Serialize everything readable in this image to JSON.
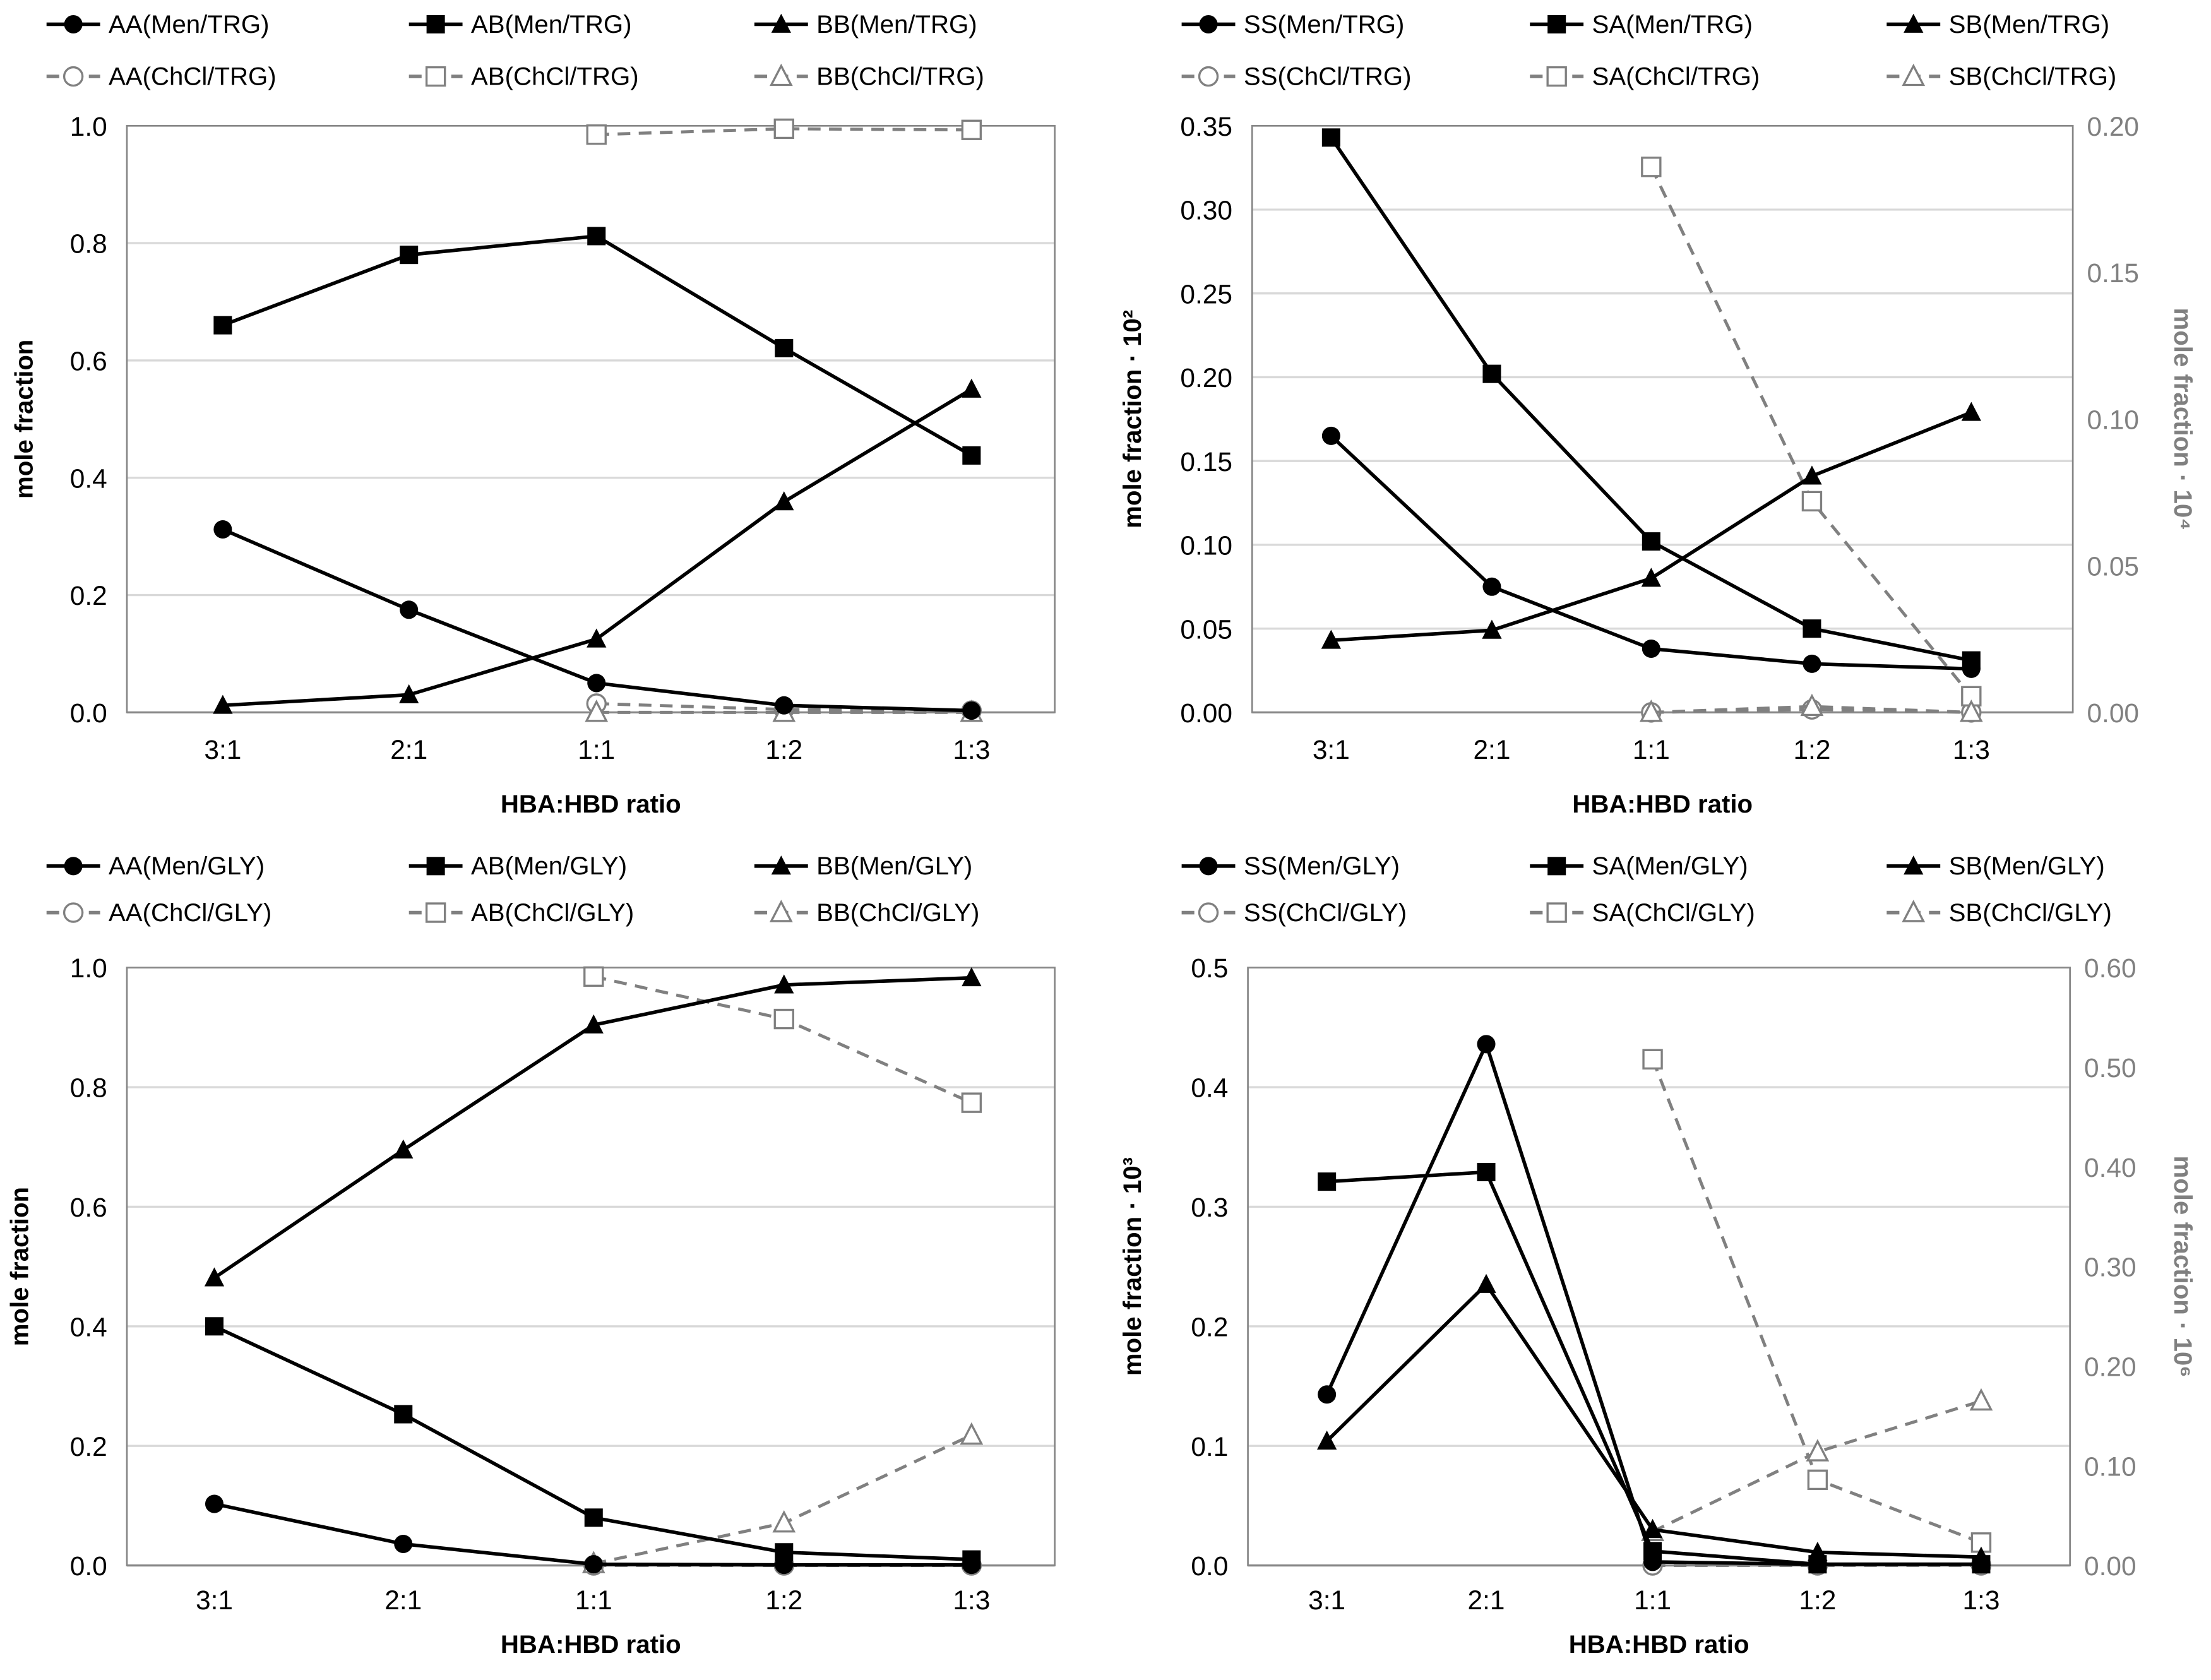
{
  "chart_data": [
    {
      "type": "line",
      "categories": [
        "3:1",
        "2:1",
        "1:1",
        "1:2",
        "1:3"
      ],
      "xlabel": "HBA:HBD ratio",
      "ylabel": "mole fraction",
      "ylim": [
        0,
        1.0
      ],
      "yticks": [
        "0.0",
        "0.2",
        "0.4",
        "0.6",
        "0.8",
        "1.0"
      ],
      "grid": true,
      "legend": "top",
      "series": [
        {
          "name": "AA(Men/TRG)",
          "axis": "left",
          "marker": "circle",
          "style": "solid",
          "color": "#000000",
          "values": [
            0.312,
            0.175,
            0.05,
            0.012,
            0.003
          ]
        },
        {
          "name": "AB(Men/TRG)",
          "axis": "left",
          "marker": "square",
          "style": "solid",
          "color": "#000000",
          "values": [
            0.66,
            0.78,
            0.812,
            0.621,
            0.438
          ]
        },
        {
          "name": "BB(Men/TRG)",
          "axis": "left",
          "marker": "triangle",
          "style": "solid",
          "color": "#000000",
          "values": [
            0.012,
            0.03,
            0.125,
            0.359,
            0.551
          ]
        },
        {
          "name": "AA(ChCl/TRG)",
          "axis": "left",
          "marker": "circle",
          "style": "dashed",
          "color": "#808080",
          "values": [
            null,
            null,
            0.015,
            0.005,
            0.003
          ]
        },
        {
          "name": "AB(ChCl/TRG)",
          "axis": "left",
          "marker": "square",
          "style": "dashed",
          "color": "#808080",
          "values": [
            null,
            null,
            0.985,
            0.995,
            0.993
          ]
        },
        {
          "name": "BB(ChCl/TRG)",
          "axis": "left",
          "marker": "triangle",
          "style": "dashed",
          "color": "#808080",
          "values": [
            null,
            null,
            0.0,
            0.0,
            0.0
          ]
        }
      ]
    },
    {
      "type": "line",
      "categories": [
        "3:1",
        "2:1",
        "1:1",
        "1:2",
        "1:3"
      ],
      "xlabel": "HBA:HBD ratio",
      "ylabel": "mole fraction · 10²",
      "y2label": "mole fraction · 10⁴",
      "ylim": [
        0,
        0.35
      ],
      "yticks": [
        "0.00",
        "0.05",
        "0.10",
        "0.15",
        "0.20",
        "0.25",
        "0.30",
        "0.35"
      ],
      "y2lim": [
        0,
        0.2
      ],
      "y2ticks": [
        "0.00",
        "0.05",
        "0.10",
        "0.15",
        "0.20"
      ],
      "grid": true,
      "legend": "top",
      "series": [
        {
          "name": "SS(Men/TRG)",
          "axis": "left",
          "marker": "circle",
          "style": "solid",
          "color": "#000000",
          "values": [
            0.165,
            0.075,
            0.038,
            0.029,
            0.026
          ]
        },
        {
          "name": "SA(Men/TRG)",
          "axis": "left",
          "marker": "square",
          "style": "solid",
          "color": "#000000",
          "values": [
            0.343,
            0.202,
            0.102,
            0.05,
            0.031
          ]
        },
        {
          "name": "SB(Men/TRG)",
          "axis": "left",
          "marker": "triangle",
          "style": "solid",
          "color": "#000000",
          "values": [
            0.043,
            0.049,
            0.08,
            0.141,
            0.179
          ]
        },
        {
          "name": "SS(ChCl/TRG)",
          "axis": "right",
          "marker": "circle",
          "style": "dashed",
          "color": "#808080",
          "values": [
            null,
            null,
            0.0,
            0.001,
            0.0
          ]
        },
        {
          "name": "SA(ChCl/TRG)",
          "axis": "right",
          "marker": "square",
          "style": "dashed",
          "color": "#808080",
          "values": [
            null,
            null,
            0.186,
            0.072,
            0.0055
          ]
        },
        {
          "name": "SB(ChCl/TRG)",
          "axis": "right",
          "marker": "triangle",
          "style": "dashed",
          "color": "#808080",
          "values": [
            null,
            null,
            0.0,
            0.002,
            0.0
          ]
        }
      ]
    },
    {
      "type": "line",
      "categories": [
        "3:1",
        "2:1",
        "1:1",
        "1:2",
        "1:3"
      ],
      "xlabel": "HBA:HBD ratio",
      "ylabel": "mole fraction",
      "ylim": [
        0,
        1.0
      ],
      "yticks": [
        "0.0",
        "0.2",
        "0.4",
        "0.6",
        "0.8",
        "1.0"
      ],
      "grid": true,
      "legend": "top",
      "series": [
        {
          "name": "AA(Men/GLY)",
          "axis": "left",
          "marker": "circle",
          "style": "solid",
          "color": "#000000",
          "values": [
            0.103,
            0.036,
            0.002,
            0.001,
            0.001
          ]
        },
        {
          "name": "AB(Men/GLY)",
          "axis": "left",
          "marker": "square",
          "style": "solid",
          "color": "#000000",
          "values": [
            0.4,
            0.253,
            0.08,
            0.022,
            0.01
          ]
        },
        {
          "name": "BB(Men/GLY)",
          "axis": "left",
          "marker": "triangle",
          "style": "solid",
          "color": "#000000",
          "values": [
            0.481,
            0.695,
            0.904,
            0.971,
            0.983
          ]
        },
        {
          "name": "AA(ChCl/GLY)",
          "axis": "left",
          "marker": "circle",
          "style": "dashed",
          "color": "#808080",
          "values": [
            null,
            null,
            0.0,
            0.0,
            0.0
          ]
        },
        {
          "name": "AB(ChCl/GLY)",
          "axis": "left",
          "marker": "square",
          "style": "dashed",
          "color": "#808080",
          "values": [
            null,
            null,
            0.985,
            0.914,
            0.774
          ]
        },
        {
          "name": "BB(ChCl/GLY)",
          "axis": "left",
          "marker": "triangle",
          "style": "dashed",
          "color": "#808080",
          "values": [
            null,
            null,
            0.003,
            0.071,
            0.218
          ]
        }
      ]
    },
    {
      "type": "line",
      "categories": [
        "3:1",
        "2:1",
        "1:1",
        "1:2",
        "1:3"
      ],
      "xlabel": "HBA:HBD ratio",
      "ylabel": "mole fraction · 10³",
      "y2label": "mole fraction · 10⁶",
      "ylim": [
        0,
        0.5
      ],
      "yticks": [
        "0.0",
        "0.1",
        "0.2",
        "0.3",
        "0.4",
        "0.5"
      ],
      "y2lim": [
        0,
        0.6
      ],
      "y2ticks": [
        "0.00",
        "0.10",
        "0.20",
        "0.30",
        "0.40",
        "0.50",
        "0.60"
      ],
      "grid": true,
      "legend": "top",
      "series": [
        {
          "name": "SS(Men/GLY)",
          "axis": "left",
          "marker": "circle",
          "style": "solid",
          "color": "#000000",
          "values": [
            0.143,
            0.436,
            0.003,
            0.001,
            0.001
          ]
        },
        {
          "name": "SA(Men/GLY)",
          "axis": "left",
          "marker": "square",
          "style": "solid",
          "color": "#000000",
          "values": [
            0.321,
            0.329,
            0.012,
            0.001,
            0.001
          ]
        },
        {
          "name": "SB(Men/GLY)",
          "axis": "left",
          "marker": "triangle",
          "style": "solid",
          "color": "#000000",
          "values": [
            0.104,
            0.235,
            0.03,
            0.011,
            0.007
          ]
        },
        {
          "name": "SS(ChCl/GLY)",
          "axis": "right",
          "marker": "circle",
          "style": "dashed",
          "color": "#808080",
          "values": [
            null,
            null,
            0.0,
            0.0,
            0.0
          ]
        },
        {
          "name": "SA(ChCl/GLY)",
          "axis": "right",
          "marker": "square",
          "style": "dashed",
          "color": "#808080",
          "values": [
            null,
            null,
            0.508,
            0.086,
            0.023
          ]
        },
        {
          "name": "SB(ChCl/GLY)",
          "axis": "right",
          "marker": "triangle",
          "style": "dashed",
          "color": "#808080",
          "values": [
            null,
            null,
            0.034,
            0.114,
            0.165
          ]
        }
      ]
    }
  ]
}
